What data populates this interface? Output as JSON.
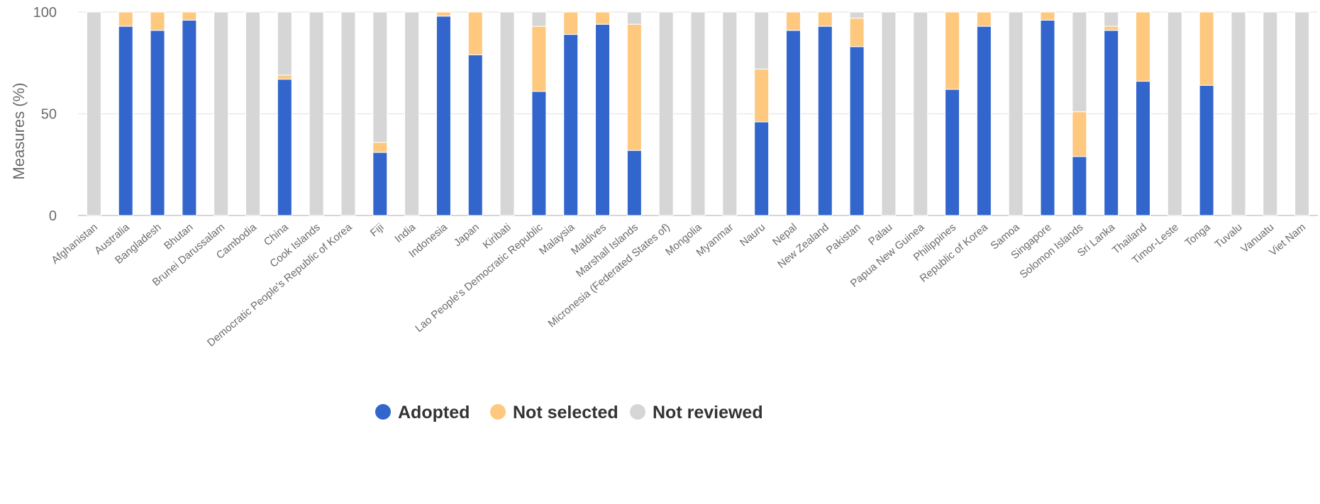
{
  "chart_data": {
    "type": "bar",
    "stacked": true,
    "ylabel": "Measures (%)",
    "ylim": [
      0,
      100
    ],
    "yticks": [
      0,
      50,
      100
    ],
    "grid": true,
    "legend_position": "bottom",
    "categories": [
      "Afghanistan",
      "Australia",
      "Bangladesh",
      "Bhutan",
      "Brunei Darussalam",
      "Cambodia",
      "China",
      "Cook Islands",
      "Democratic People's Republic of Korea",
      "Fiji",
      "India",
      "Indonesia",
      "Japan",
      "Kiribati",
      "Lao People's Democratic Republic",
      "Malaysia",
      "Maldives",
      "Marshall Islands",
      "Micronesia (Federated States of)",
      "Mongolia",
      "Myanmar",
      "Nauru",
      "Nepal",
      "New Zealand",
      "Pakistan",
      "Palau",
      "Papua New Guinea",
      "Philippines",
      "Republic of Korea",
      "Samoa",
      "Singapore",
      "Solomon Islands",
      "Sri Lanka",
      "Thailand",
      "Timor-Leste",
      "Tonga",
      "Tuvalu",
      "Vanuatu",
      "Viet Nam"
    ],
    "series": [
      {
        "name": "Adopted",
        "color": "#3366cc",
        "values": [
          0,
          93,
          91,
          96,
          0,
          0,
          67,
          0,
          0,
          31,
          0,
          98,
          79,
          0,
          61,
          89,
          94,
          32,
          0,
          0,
          0,
          46,
          91,
          93,
          83,
          0,
          0,
          62,
          93,
          0,
          96,
          29,
          91,
          66,
          0,
          64,
          0,
          0,
          0
        ]
      },
      {
        "name": "Not selected",
        "color": "#ffc87f",
        "values": [
          0,
          7,
          9,
          4,
          0,
          0,
          2,
          0,
          0,
          5,
          0,
          2,
          21,
          0,
          32,
          11,
          6,
          62,
          0,
          0,
          0,
          26,
          9,
          7,
          14,
          0,
          0,
          38,
          7,
          0,
          4,
          22,
          2,
          34,
          0,
          36,
          0,
          0,
          0
        ]
      },
      {
        "name": "Not reviewed",
        "color": "#d6d6d6",
        "values": [
          100,
          0,
          0,
          0,
          100,
          100,
          31,
          100,
          100,
          64,
          100,
          0,
          0,
          100,
          7,
          0,
          0,
          6,
          100,
          100,
          100,
          28,
          0,
          0,
          3,
          100,
          100,
          0,
          0,
          100,
          0,
          49,
          7,
          0,
          100,
          0,
          100,
          100,
          100
        ]
      }
    ]
  }
}
